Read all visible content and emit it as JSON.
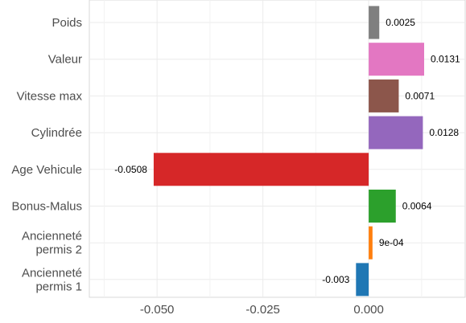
{
  "chart_data": {
    "type": "bar",
    "orientation": "horizontal",
    "title": "",
    "xlabel": "",
    "ylabel": "",
    "xlim": [
      -0.066,
      0.0228
    ],
    "xticks": [
      -0.05,
      -0.025,
      0.0
    ],
    "xtick_labels": [
      "-0.050",
      "-0.025",
      "0.000"
    ],
    "grid": true,
    "legend": "none",
    "categories": [
      [
        "Poids"
      ],
      [
        "Valeur"
      ],
      [
        "Vitesse max"
      ],
      [
        "Cylindrée"
      ],
      [
        "Age Vehicule"
      ],
      [
        "Bonus-Malus"
      ],
      [
        "Ancienneté",
        "permis 2"
      ],
      [
        "Ancienneté",
        "permis 1"
      ]
    ],
    "values": [
      0.0025,
      0.0131,
      0.0071,
      0.0128,
      -0.0508,
      0.0064,
      0.0009,
      -0.003
    ],
    "value_labels": [
      "0.0025",
      "0.0131",
      "0.0071",
      "0.0128",
      "-0.0508",
      "0.0064",
      "9e-04",
      "-0.003"
    ],
    "colors": [
      "#7f7f7f",
      "#e377c2",
      "#8c564b",
      "#9467bd",
      "#d62728",
      "#2ca02c",
      "#ff7f0e",
      "#1f77b4"
    ]
  }
}
